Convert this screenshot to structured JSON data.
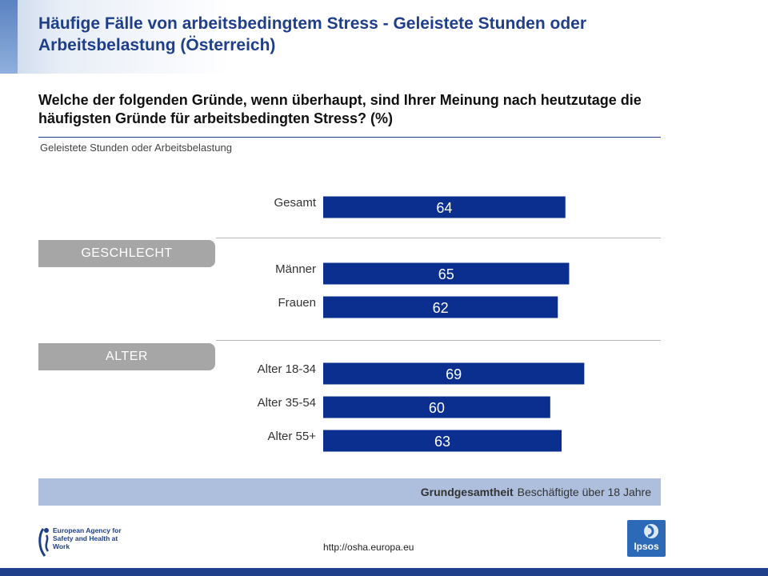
{
  "header": {
    "title": "Häufige Fälle von arbeitsbedingtem Stress - Geleistete Stunden oder Arbeitsbelastung (Österreich)"
  },
  "question": "Welche der folgenden Gründe, wenn überhaupt, sind Ihrer Meinung nach heutzutage die häufigsten Gründe für arbeitsbedingten Stress? (%)",
  "groups": {
    "gender": "GESCHLECHT",
    "age": "ALTER"
  },
  "colors": {
    "bar": "#0a2f8f",
    "title": "#1f3f8a",
    "group_bg": "#a6a6a6",
    "base_bg": "#aebfdd"
  },
  "chart_data": {
    "type": "bar",
    "orientation": "horizontal",
    "title": "Geleistete Stunden oder Arbeitsbelastung",
    "categories": [
      "Gesamt",
      "Männer",
      "Frauen",
      "Alter 18-34",
      "Alter 35-54",
      "Alter 55+"
    ],
    "values": [
      64,
      65,
      62,
      69,
      60,
      63
    ],
    "xlim": [
      0,
      100
    ],
    "unit": "%",
    "grid": false,
    "data_labels": true
  },
  "base": {
    "label": "Grundgesamtheit",
    "text": "Beschäftigte über 18 Jahre"
  },
  "footer": {
    "url": "http://osha.europa.eu",
    "agency_logo_text": "European Agency for Safety and Health at Work",
    "ipsos_logo_text": "Ipsos"
  }
}
